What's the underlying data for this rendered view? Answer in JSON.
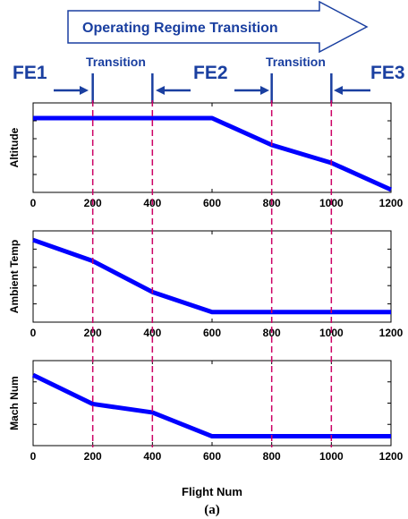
{
  "header": {
    "arrow_label": "Operating Regime Transition",
    "regime_labels": [
      "FE1",
      "FE2",
      "FE3"
    ],
    "transition_labels": [
      "Transition",
      "Transition"
    ],
    "arrow_color": "#1a3fa0"
  },
  "caption": "(a)",
  "chart_data": [
    {
      "type": "line",
      "ylabel": "Altitude",
      "xlabel": "",
      "xlim": [
        0,
        1200
      ],
      "x_ticks": [
        0,
        200,
        400,
        600,
        800,
        1000,
        1200
      ],
      "x_tick_labels": [
        "0",
        "200",
        "400",
        "600",
        "800",
        "1000",
        "1200"
      ],
      "ylim": [
        0,
        1
      ],
      "y_tick_count": 4,
      "series": [
        {
          "x": [
            0,
            600,
            800,
            1000,
            1200
          ],
          "y": [
            0.83,
            0.83,
            0.53,
            0.33,
            0.03
          ],
          "color": "#0000ff"
        }
      ]
    },
    {
      "type": "line",
      "ylabel": "Ambient Temp",
      "xlabel": "",
      "xlim": [
        0,
        1200
      ],
      "x_ticks": [
        0,
        200,
        400,
        600,
        800,
        1000,
        1200
      ],
      "x_tick_labels": [
        "0",
        "200",
        "400",
        "600",
        "800",
        "1000",
        "1200"
      ],
      "ylim": [
        0,
        1
      ],
      "y_tick_count": 4,
      "series": [
        {
          "x": [
            0,
            200,
            400,
            600,
            1200
          ],
          "y": [
            0.9,
            0.67,
            0.33,
            0.11,
            0.11
          ],
          "color": "#0000ff"
        }
      ]
    },
    {
      "type": "line",
      "ylabel": "Mach Num",
      "xlabel": "Flight Num",
      "xlim": [
        0,
        1200
      ],
      "x_ticks": [
        0,
        200,
        400,
        600,
        800,
        1000,
        1200
      ],
      "x_tick_labels": [
        "0",
        "200",
        "400",
        "600",
        "800",
        "1000",
        "1200"
      ],
      "ylim": [
        0,
        1
      ],
      "y_tick_count": 3,
      "series": [
        {
          "x": [
            0,
            200,
            400,
            600,
            1200
          ],
          "y": [
            0.83,
            0.49,
            0.39,
            0.11,
            0.11
          ],
          "color": "#0000ff"
        }
      ]
    }
  ],
  "transition_x": [
    200,
    400,
    800,
    1000
  ],
  "transition_line_color": "#cc0066"
}
